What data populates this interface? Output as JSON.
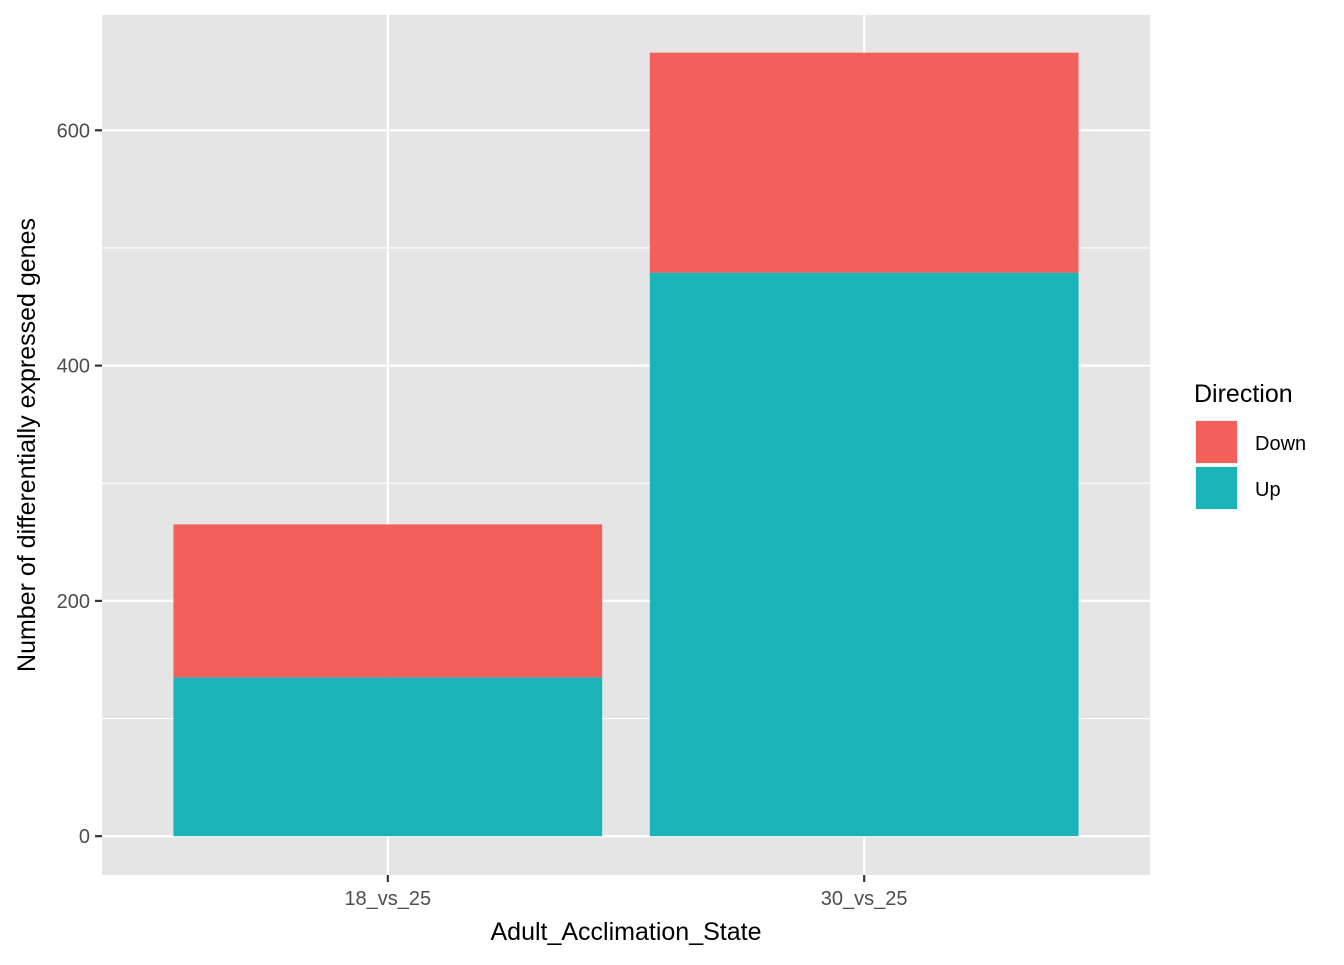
{
  "chart_data": {
    "type": "bar",
    "stacked": true,
    "categories": [
      "18_vs_25",
      "30_vs_25"
    ],
    "series": [
      {
        "name": "Up",
        "values": [
          135,
          479
        ],
        "color": "#19b3b8"
      },
      {
        "name": "Down",
        "values": [
          130,
          187
        ],
        "color": "#f2605b"
      }
    ],
    "title": "",
    "xlabel": "Adult_Acclimation_State",
    "ylabel": "Number of differentially expressed genes",
    "ylim": [
      -33,
      698
    ],
    "yticks": [
      0,
      200,
      400,
      600
    ],
    "ytick_labels": [
      "0",
      "200",
      "400",
      "600"
    ],
    "grid": true,
    "legend": {
      "title": "Direction",
      "position": "right",
      "items": [
        {
          "label": "Down",
          "color": "#f2605b"
        },
        {
          "label": "Up",
          "color": "#19b3b8"
        }
      ]
    },
    "panel_background": "#e5e5e5",
    "grid_color": "#ffffff"
  }
}
